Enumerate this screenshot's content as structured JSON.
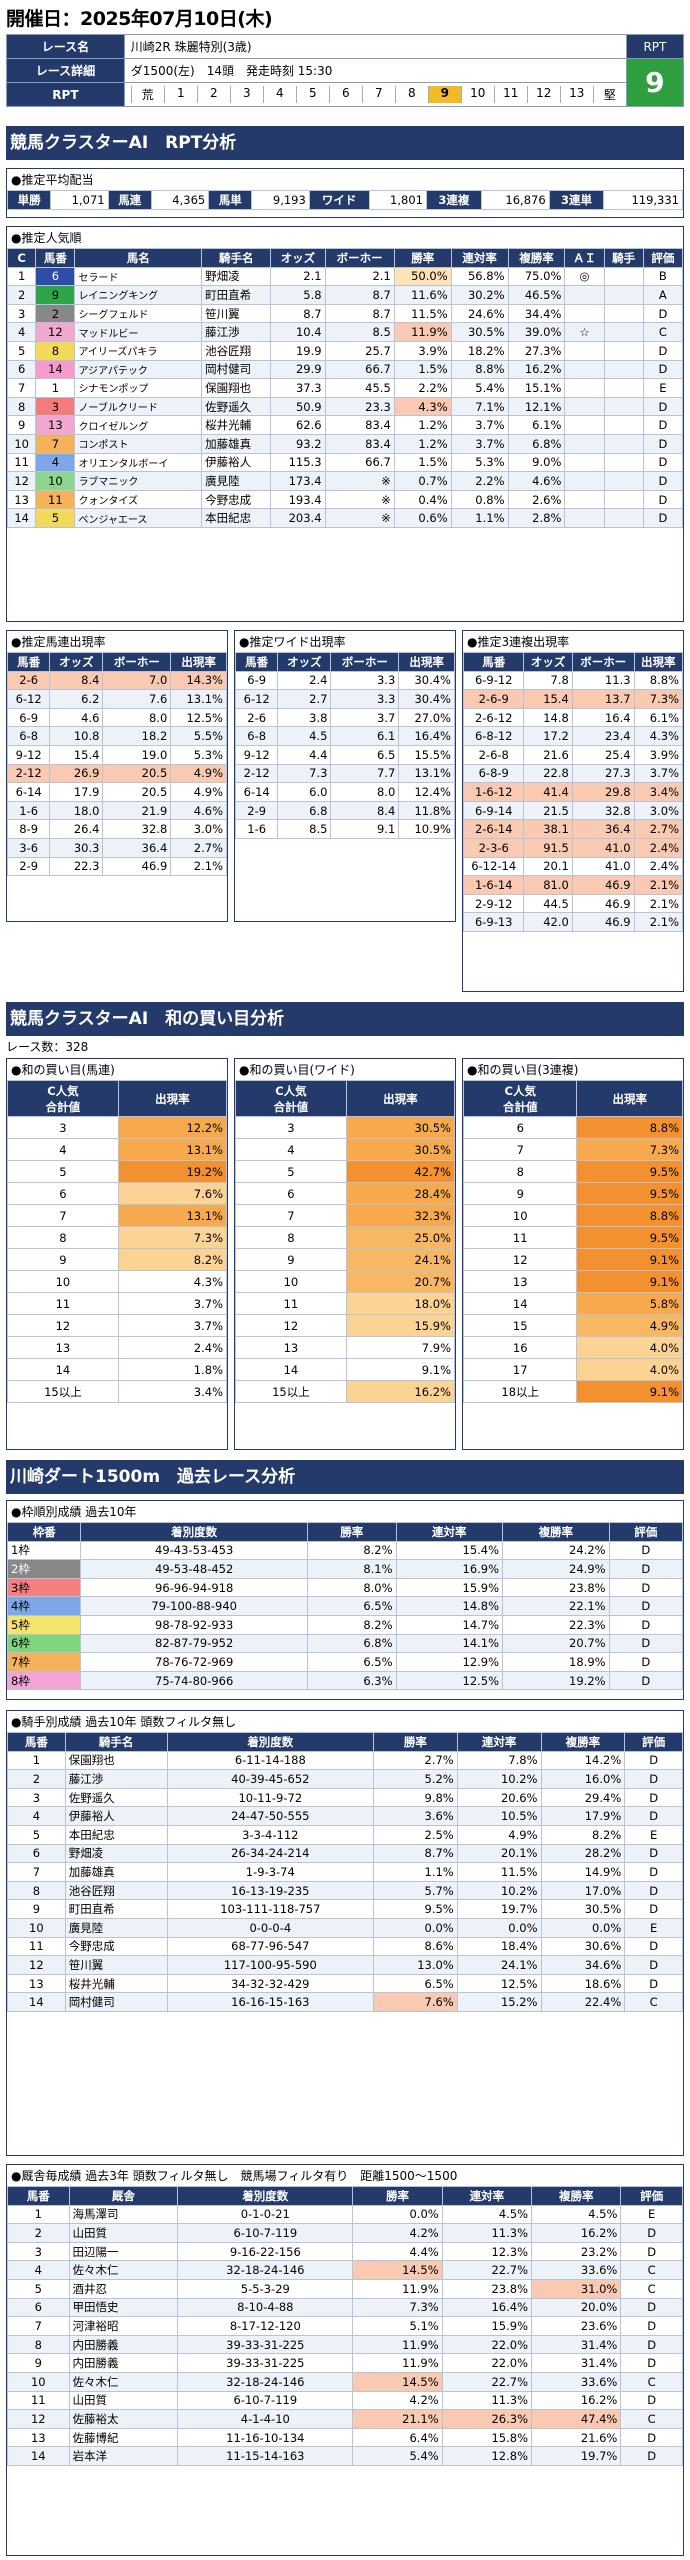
{
  "header": {
    "date": "開催日：2025年07月10日(木)",
    "race_name_label": "レース名",
    "race_name": "川崎2R 珠麗特別(3歳)",
    "detail_label": "レース詳細",
    "detail": "ダ1500(左)　14頭　発走時刻 15:30",
    "rpt_label": "RPT",
    "rpt_scale": [
      "荒",
      "1",
      "2",
      "3",
      "4",
      "5",
      "6",
      "7",
      "8",
      "9",
      "10",
      "11",
      "12",
      "13",
      "堅"
    ],
    "rpt_value": "9"
  },
  "sec1": "競馬クラスターAI　RPT分析",
  "payout": {
    "title": "●推定平均配当",
    "items": [
      [
        "単勝",
        "1,071"
      ],
      [
        "馬連",
        "4,365"
      ],
      [
        "馬単",
        "9,193"
      ],
      [
        "ワイド",
        "1,801"
      ],
      [
        "3連複",
        "16,876"
      ],
      [
        "3連単",
        "119,331"
      ]
    ]
  },
  "pop": {
    "title": "●推定人気順",
    "headers": [
      "C",
      "馬番",
      "馬名",
      "騎手名",
      "オッズ",
      "ボーホー",
      "勝率",
      "連対率",
      "複勝率",
      "ＡＩ",
      "騎手",
      "評価"
    ],
    "rows": [
      [
        "1",
        "6",
        "セラード",
        "野畑凌",
        "2.1",
        "2.1",
        "50.0%",
        "56.8%",
        "75.0%",
        "◎",
        "",
        "B"
      ],
      [
        "2",
        "9",
        "レイニングキング",
        "町田直希",
        "5.8",
        "8.7",
        "11.6%",
        "30.2%",
        "46.5%",
        "",
        "",
        "A"
      ],
      [
        "3",
        "2",
        "シーグフェルド",
        "笹川翼",
        "8.7",
        "8.7",
        "11.5%",
        "24.6%",
        "34.4%",
        "",
        "",
        "D"
      ],
      [
        "4",
        "12",
        "マッドルビー",
        "藤江渉",
        "10.4",
        "8.5",
        "11.9%",
        "30.5%",
        "39.0%",
        "☆",
        "",
        "C"
      ],
      [
        "5",
        "8",
        "アイリーズパキラ",
        "池谷匠翔",
        "19.9",
        "25.7",
        "3.9%",
        "18.2%",
        "27.3%",
        "",
        "",
        "D"
      ],
      [
        "6",
        "14",
        "アジアパテック",
        "岡村健司",
        "29.9",
        "66.7",
        "1.5%",
        "8.8%",
        "16.2%",
        "",
        "",
        "D"
      ],
      [
        "7",
        "1",
        "シナモンポップ",
        "保園翔也",
        "37.3",
        "45.5",
        "2.2%",
        "5.4%",
        "15.1%",
        "",
        "",
        "E"
      ],
      [
        "8",
        "3",
        "ノーブルクリード",
        "佐野遥久",
        "50.9",
        "23.3",
        "4.3%",
        "7.1%",
        "12.1%",
        "",
        "",
        "D"
      ],
      [
        "9",
        "13",
        "クロイゼルング",
        "桜井光輔",
        "62.6",
        "83.4",
        "1.2%",
        "3.7%",
        "6.1%",
        "",
        "",
        "D"
      ],
      [
        "10",
        "7",
        "コンポスト",
        "加藤雄真",
        "93.2",
        "83.4",
        "1.2%",
        "3.7%",
        "6.8%",
        "",
        "",
        "D"
      ],
      [
        "11",
        "4",
        "オリエンタルボーイ",
        "伊藤裕人",
        "115.3",
        "66.7",
        "1.5%",
        "5.3%",
        "9.0%",
        "",
        "",
        "D"
      ],
      [
        "12",
        "10",
        "ラブマニック",
        "廣見陸",
        "173.4",
        "※",
        "0.7%",
        "2.2%",
        "4.6%",
        "",
        "",
        "D"
      ],
      [
        "13",
        "11",
        "クォンタイズ",
        "今野忠成",
        "193.4",
        "※",
        "0.4%",
        "0.8%",
        "2.6%",
        "",
        "",
        "D"
      ],
      [
        "14",
        "5",
        "ベンジャエース",
        "本田紀忠",
        "203.4",
        "※",
        "0.6%",
        "1.1%",
        "2.8%",
        "",
        "",
        "D"
      ]
    ]
  },
  "umaren": {
    "title": "●推定馬連出現率",
    "headers": [
      "馬番",
      "オッズ",
      "ボーホー",
      "出現率"
    ],
    "rows": [
      [
        "2-6",
        "8.4",
        "7.0",
        "14.3%"
      ],
      [
        "6-12",
        "6.2",
        "7.6",
        "13.1%"
      ],
      [
        "6-9",
        "4.6",
        "8.0",
        "12.5%"
      ],
      [
        "6-8",
        "10.8",
        "18.2",
        "5.5%"
      ],
      [
        "9-12",
        "15.4",
        "19.0",
        "5.3%"
      ],
      [
        "2-12",
        "26.9",
        "20.5",
        "4.9%"
      ],
      [
        "6-14",
        "17.9",
        "20.5",
        "4.9%"
      ],
      [
        "1-6",
        "18.0",
        "21.9",
        "4.6%"
      ],
      [
        "8-9",
        "26.4",
        "32.8",
        "3.0%"
      ],
      [
        "3-6",
        "30.3",
        "36.4",
        "2.7%"
      ],
      [
        "2-9",
        "22.3",
        "46.9",
        "2.1%"
      ]
    ]
  },
  "wide": {
    "title": "●推定ワイド出現率",
    "headers": [
      "馬番",
      "オッズ",
      "ボーホー",
      "出現率"
    ],
    "rows": [
      [
        "6-9",
        "2.4",
        "3.3",
        "30.4%"
      ],
      [
        "6-12",
        "2.7",
        "3.3",
        "30.4%"
      ],
      [
        "2-6",
        "3.8",
        "3.7",
        "27.0%"
      ],
      [
        "6-8",
        "4.5",
        "6.1",
        "16.4%"
      ],
      [
        "9-12",
        "4.4",
        "6.5",
        "15.5%"
      ],
      [
        "2-12",
        "7.3",
        "7.7",
        "13.1%"
      ],
      [
        "6-14",
        "6.0",
        "8.0",
        "12.4%"
      ],
      [
        "2-9",
        "6.8",
        "8.4",
        "11.8%"
      ],
      [
        "1-6",
        "8.5",
        "9.1",
        "10.9%"
      ]
    ]
  },
  "sanren": {
    "title": "●推定3連複出現率",
    "headers": [
      "馬番",
      "オッズ",
      "ボーホー",
      "出現率"
    ],
    "rows": [
      [
        "6-9-12",
        "7.8",
        "11.3",
        "8.8%"
      ],
      [
        "2-6-9",
        "15.4",
        "13.7",
        "7.3%"
      ],
      [
        "2-6-12",
        "14.8",
        "16.4",
        "6.1%"
      ],
      [
        "6-8-12",
        "17.2",
        "23.4",
        "4.3%"
      ],
      [
        "2-6-8",
        "21.6",
        "25.4",
        "3.9%"
      ],
      [
        "6-8-9",
        "22.8",
        "27.3",
        "3.7%"
      ],
      [
        "1-6-12",
        "41.4",
        "29.8",
        "3.4%"
      ],
      [
        "6-9-14",
        "21.5",
        "32.8",
        "3.0%"
      ],
      [
        "2-6-14",
        "38.1",
        "36.4",
        "2.7%"
      ],
      [
        "2-3-6",
        "91.5",
        "41.0",
        "2.4%"
      ],
      [
        "6-12-14",
        "20.1",
        "41.0",
        "2.4%"
      ],
      [
        "1-6-14",
        "81.0",
        "46.9",
        "2.1%"
      ],
      [
        "2-9-12",
        "44.5",
        "46.9",
        "2.1%"
      ],
      [
        "6-9-13",
        "42.0",
        "46.9",
        "2.1%"
      ]
    ]
  },
  "sec2": "競馬クラスターAI　和の買い目分析",
  "race_count": "レース数：328",
  "wa": [
    {
      "title": "●和の買い目(馬連)",
      "h1": "C人気\n合計値",
      "h2": "出現率",
      "rows": [
        [
          "3",
          "12.2%"
        ],
        [
          "4",
          "13.1%"
        ],
        [
          "5",
          "19.2%"
        ],
        [
          "6",
          "7.6%"
        ],
        [
          "7",
          "13.1%"
        ],
        [
          "8",
          "7.3%"
        ],
        [
          "9",
          "8.2%"
        ],
        [
          "10",
          "4.3%"
        ],
        [
          "11",
          "3.7%"
        ],
        [
          "12",
          "3.7%"
        ],
        [
          "13",
          "2.4%"
        ],
        [
          "14",
          "1.8%"
        ],
        [
          "15以上",
          "3.4%"
        ]
      ]
    },
    {
      "title": "●和の買い目(ワイド)",
      "h1": "C人気\n合計値",
      "h2": "出現率",
      "rows": [
        [
          "3",
          "30.5%"
        ],
        [
          "4",
          "30.5%"
        ],
        [
          "5",
          "42.7%"
        ],
        [
          "6",
          "28.4%"
        ],
        [
          "7",
          "32.3%"
        ],
        [
          "8",
          "25.0%"
        ],
        [
          "9",
          "24.1%"
        ],
        [
          "10",
          "20.7%"
        ],
        [
          "11",
          "18.0%"
        ],
        [
          "12",
          "15.9%"
        ],
        [
          "13",
          "7.9%"
        ],
        [
          "14",
          "9.1%"
        ],
        [
          "15以上",
          "16.2%"
        ]
      ]
    },
    {
      "title": "●和の買い目(3連複)",
      "h1": "C人気\n合計値",
      "h2": "出現率",
      "rows": [
        [
          "6",
          "8.8%"
        ],
        [
          "7",
          "7.3%"
        ],
        [
          "8",
          "9.5%"
        ],
        [
          "9",
          "9.5%"
        ],
        [
          "10",
          "8.8%"
        ],
        [
          "11",
          "9.5%"
        ],
        [
          "12",
          "9.1%"
        ],
        [
          "13",
          "9.1%"
        ],
        [
          "14",
          "5.8%"
        ],
        [
          "15",
          "4.9%"
        ],
        [
          "16",
          "4.0%"
        ],
        [
          "17",
          "4.0%"
        ],
        [
          "18以上",
          "9.1%"
        ]
      ]
    }
  ],
  "sec3": "川崎ダート1500m　過去レース分析",
  "waku": {
    "title": "●枠順別成績 過去10年",
    "headers": [
      "枠番",
      "着別度数",
      "勝率",
      "連対率",
      "複勝率",
      "評価"
    ],
    "rows": [
      [
        "1枠",
        "49-43-53-453",
        "8.2%",
        "15.4%",
        "24.2%",
        "D"
      ],
      [
        "2枠",
        "49-53-48-452",
        "8.1%",
        "16.9%",
        "24.9%",
        "D"
      ],
      [
        "3枠",
        "96-96-94-918",
        "8.0%",
        "15.9%",
        "23.8%",
        "D"
      ],
      [
        "4枠",
        "79-100-88-940",
        "6.5%",
        "14.8%",
        "22.1%",
        "D"
      ],
      [
        "5枠",
        "98-78-92-933",
        "8.2%",
        "14.7%",
        "22.3%",
        "D"
      ],
      [
        "6枠",
        "82-87-79-952",
        "6.8%",
        "14.1%",
        "20.7%",
        "D"
      ],
      [
        "7枠",
        "78-76-72-969",
        "6.5%",
        "12.9%",
        "18.9%",
        "D"
      ],
      [
        "8枠",
        "75-74-80-966",
        "6.3%",
        "12.5%",
        "19.2%",
        "D"
      ]
    ],
    "colors": [
      "#ffffff",
      "#888888",
      "#f47f7f",
      "#7da7e6",
      "#f5e46c",
      "#7fd67f",
      "#f5b25a",
      "#f0a5d5"
    ]
  },
  "jockey": {
    "title": "●騎手別成績 過去10年 頭数フィルタ無し",
    "headers": [
      "馬番",
      "騎手名",
      "着別度数",
      "勝率",
      "連対率",
      "複勝率",
      "評価"
    ],
    "rows": [
      [
        "1",
        "保園翔也",
        "6-11-14-188",
        "2.7%",
        "7.8%",
        "14.2%",
        "D"
      ],
      [
        "2",
        "藤江渉",
        "40-39-45-652",
        "5.2%",
        "10.2%",
        "16.0%",
        "D"
      ],
      [
        "3",
        "佐野遥久",
        "10-11-9-72",
        "9.8%",
        "20.6%",
        "29.4%",
        "D"
      ],
      [
        "4",
        "伊藤裕人",
        "24-47-50-555",
        "3.6%",
        "10.5%",
        "17.9%",
        "D"
      ],
      [
        "5",
        "本田紀忠",
        "3-3-4-112",
        "2.5%",
        "4.9%",
        "8.2%",
        "E"
      ],
      [
        "6",
        "野畑凌",
        "26-34-24-214",
        "8.7%",
        "20.1%",
        "28.2%",
        "D"
      ],
      [
        "7",
        "加藤雄真",
        "1-9-3-74",
        "1.1%",
        "11.5%",
        "14.9%",
        "D"
      ],
      [
        "8",
        "池谷匠翔",
        "16-13-19-235",
        "5.7%",
        "10.2%",
        "17.0%",
        "D"
      ],
      [
        "9",
        "町田直希",
        "103-111-118-757",
        "9.5%",
        "19.7%",
        "30.5%",
        "D"
      ],
      [
        "10",
        "廣見陸",
        "0-0-0-4",
        "0.0%",
        "0.0%",
        "0.0%",
        "E"
      ],
      [
        "11",
        "今野忠成",
        "68-77-96-547",
        "8.6%",
        "18.4%",
        "30.6%",
        "D"
      ],
      [
        "12",
        "笹川翼",
        "117-100-95-590",
        "13.0%",
        "24.1%",
        "34.6%",
        "D"
      ],
      [
        "13",
        "桜井光輔",
        "34-32-32-429",
        "6.5%",
        "12.5%",
        "18.6%",
        "D"
      ],
      [
        "14",
        "岡村健司",
        "16-16-15-163",
        "7.6%",
        "15.2%",
        "22.4%",
        "C"
      ]
    ]
  },
  "combo": {
    "title": "●厩舎毎成績 過去3年 頭数フィルタ無し　競馬場フィルタ有り　距離1500～1500",
    "headers": [
      "馬番",
      "厩舎",
      "着別度数",
      "勝率",
      "連対率",
      "複勝率",
      "評価"
    ],
    "rows": [
      [
        "1",
        "海馬澤司",
        "0-1-0-21",
        "0.0%",
        "4.5%",
        "4.5%",
        "E"
      ],
      [
        "2",
        "山田質",
        "6-10-7-119",
        "4.2%",
        "11.3%",
        "16.2%",
        "D"
      ],
      [
        "3",
        "田辺陽一",
        "9-16-22-156",
        "4.4%",
        "12.3%",
        "23.2%",
        "D"
      ],
      [
        "4",
        "佐々木仁",
        "32-18-24-146",
        "14.5%",
        "22.7%",
        "33.6%",
        "C"
      ],
      [
        "5",
        "酒井忍",
        "5-5-3-29",
        "11.9%",
        "23.8%",
        "31.0%",
        "C"
      ],
      [
        "6",
        "甲田悟史",
        "8-10-4-88",
        "7.3%",
        "16.4%",
        "20.0%",
        "D"
      ],
      [
        "7",
        "河津裕昭",
        "8-17-12-120",
        "5.1%",
        "15.9%",
        "23.6%",
        "D"
      ],
      [
        "8",
        "内田勝義",
        "39-33-31-225",
        "11.9%",
        "22.0%",
        "31.4%",
        "D"
      ],
      [
        "9",
        "内田勝義",
        "39-33-31-225",
        "11.9%",
        "22.0%",
        "31.4%",
        "D"
      ],
      [
        "10",
        "佐々木仁",
        "32-18-24-146",
        "14.5%",
        "22.7%",
        "33.6%",
        "C"
      ],
      [
        "11",
        "山田質",
        "6-10-7-119",
        "4.2%",
        "11.3%",
        "16.2%",
        "D"
      ],
      [
        "12",
        "佐藤裕太",
        "4-1-4-10",
        "21.1%",
        "26.3%",
        "47.4%",
        "C"
      ],
      [
        "13",
        "佐藤博紀",
        "11-16-10-134",
        "6.4%",
        "15.8%",
        "21.6%",
        "D"
      ],
      [
        "14",
        "岩本洋",
        "11-15-14-163",
        "5.4%",
        "12.8%",
        "19.7%",
        "D"
      ]
    ]
  }
}
